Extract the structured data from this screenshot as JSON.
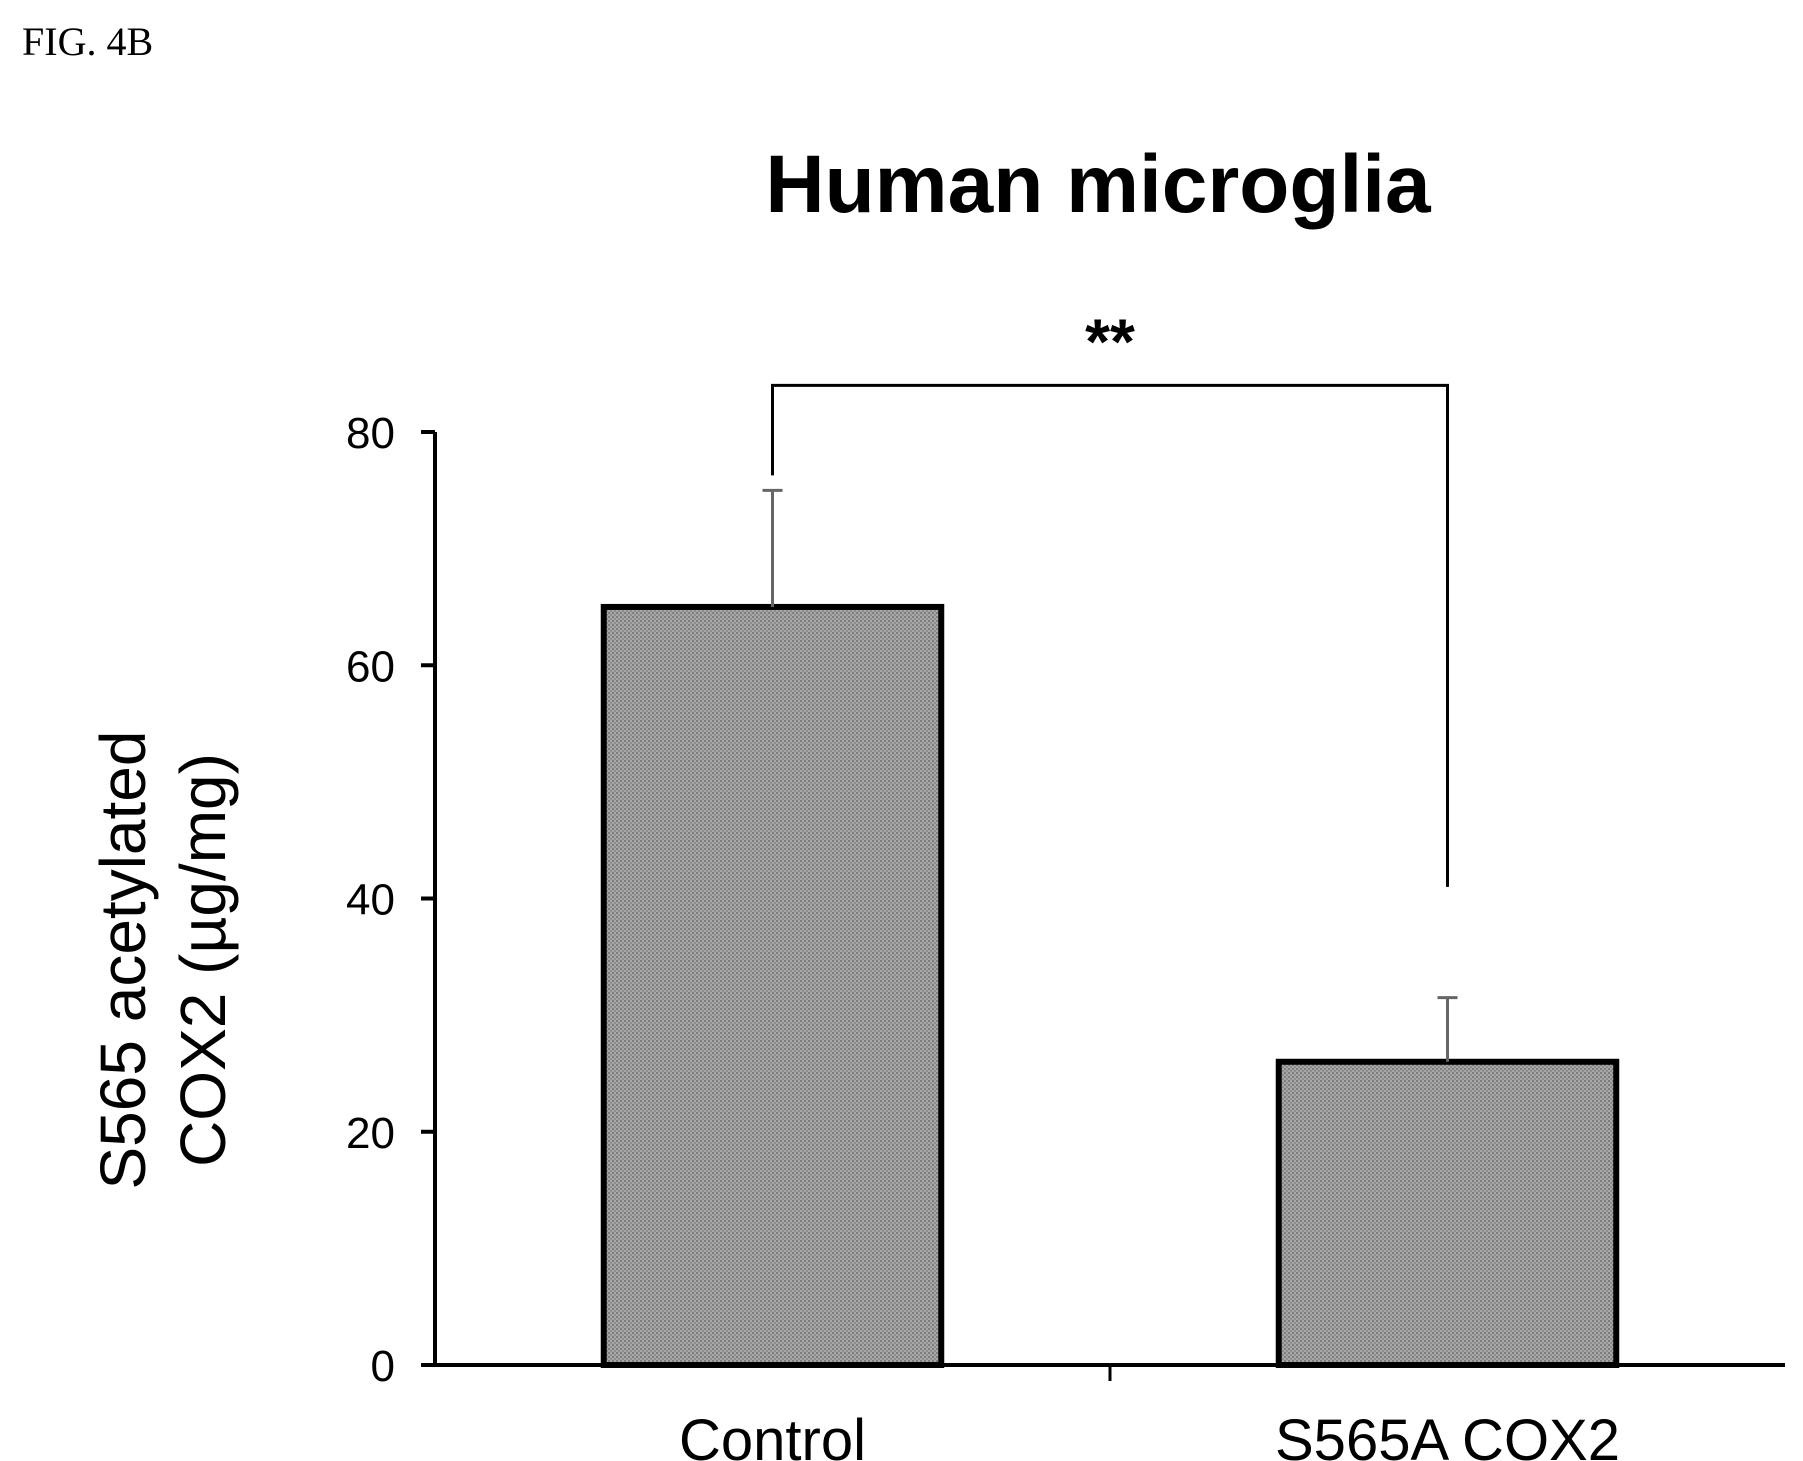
{
  "figure_label": "FIG. 4B",
  "chart_data": {
    "type": "bar",
    "title": "Human microglia",
    "ylabel_lines": [
      "S565 acetylated",
      "COX2 (µg/mg)"
    ],
    "xlabel": "",
    "categories": [
      "Control",
      "S565A COX2"
    ],
    "values": [
      65,
      26
    ],
    "errors": [
      10,
      5.5
    ],
    "ylim": [
      0,
      80
    ],
    "yticks": [
      0,
      20,
      40,
      60,
      80
    ],
    "ytick_labels": [
      "0",
      "20",
      "40",
      "60",
      "80"
    ],
    "grid": false,
    "legend": "none",
    "bar_color": "#9a9a9a",
    "significance": {
      "label": "**",
      "between": [
        "Control",
        "S565A COX2"
      ]
    }
  }
}
